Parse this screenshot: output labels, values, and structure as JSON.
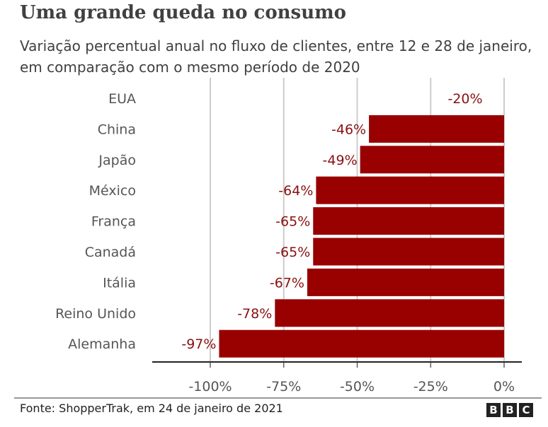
{
  "chart_data": {
    "type": "bar",
    "orientation": "horizontal",
    "title": "Uma grande queda no consumo",
    "subtitle": "Variação percentual anual no fluxo de clientes, entre 12 e 28 de janeiro, em comparação com o mesmo período de 2020",
    "categories": [
      "EUA",
      "China",
      "Japão",
      "México",
      "França",
      "Canadá",
      "Itália",
      "Reino Unido",
      "Alemanha"
    ],
    "values": [
      -20,
      -46,
      -49,
      -64,
      -65,
      -65,
      -67,
      -78,
      -97
    ],
    "data_labels": [
      "-20%",
      "-46%",
      "-49%",
      "-64%",
      "-65%",
      "-65%",
      "-67%",
      "-78%",
      "-97%"
    ],
    "bar_drawn": [
      false,
      true,
      true,
      true,
      true,
      true,
      true,
      true,
      true
    ],
    "xlim": [
      -100,
      0
    ],
    "x_ticks": [
      -100,
      -75,
      -50,
      -25,
      0
    ],
    "x_tick_labels": [
      "-100%",
      "-75%",
      "-50%",
      "-25%",
      "0%"
    ],
    "grid": true,
    "colors": {
      "bar": "#990000",
      "label": "#8a1010",
      "grid": "#cccccc",
      "text": "#404040"
    }
  },
  "footer": {
    "source": "Fonte: ShopperTrak, em 24 de janeiro de 2021",
    "logo": [
      "B",
      "B",
      "C"
    ]
  }
}
